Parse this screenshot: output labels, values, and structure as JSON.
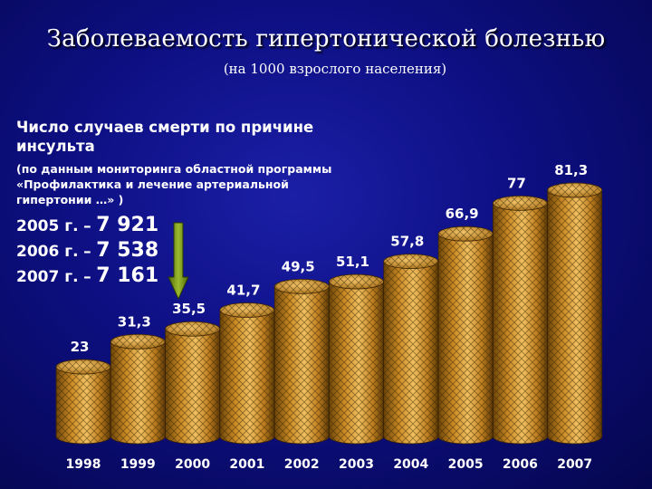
{
  "title": "Заболеваемость гипертонической болезнью",
  "subtitle": "(на 1000 взрослого населения)",
  "info": {
    "heading": "Число случаев смерти по причине инсульта",
    "source": "(по данным мониторинга областной программы «Профилактика и лечение артериальной гипертонии …» )",
    "stats": [
      {
        "year": "2005 г.",
        "sep": "–",
        "value": "7 921"
      },
      {
        "year": "2006 г.",
        "sep": "–",
        "value": "7 538"
      },
      {
        "year": "2007 г.",
        "sep": "–",
        "value": "7 161"
      }
    ],
    "arrow_color": "#7a9a1a"
  },
  "chart_data": {
    "type": "bar",
    "categories": [
      "1998",
      "1999",
      "2000",
      "2001",
      "2002",
      "2003",
      "2004",
      "2005",
      "2006",
      "2007"
    ],
    "values": [
      23,
      31.3,
      35.5,
      41.7,
      49.5,
      51.1,
      57.8,
      66.9,
      77,
      81.3
    ],
    "value_labels": [
      "23",
      "31,3",
      "35,5",
      "41,7",
      "49,5",
      "51,1",
      "57,8",
      "66,9",
      "77",
      "81,3"
    ],
    "title": "Заболеваемость гипертонической болезнью",
    "xlabel": "",
    "ylabel": "",
    "ylim": [
      0,
      81.3
    ],
    "grid": false,
    "bar_style": "3d-cylinder",
    "bar_color": "#d49a2c",
    "label_color": "#ffffff"
  }
}
